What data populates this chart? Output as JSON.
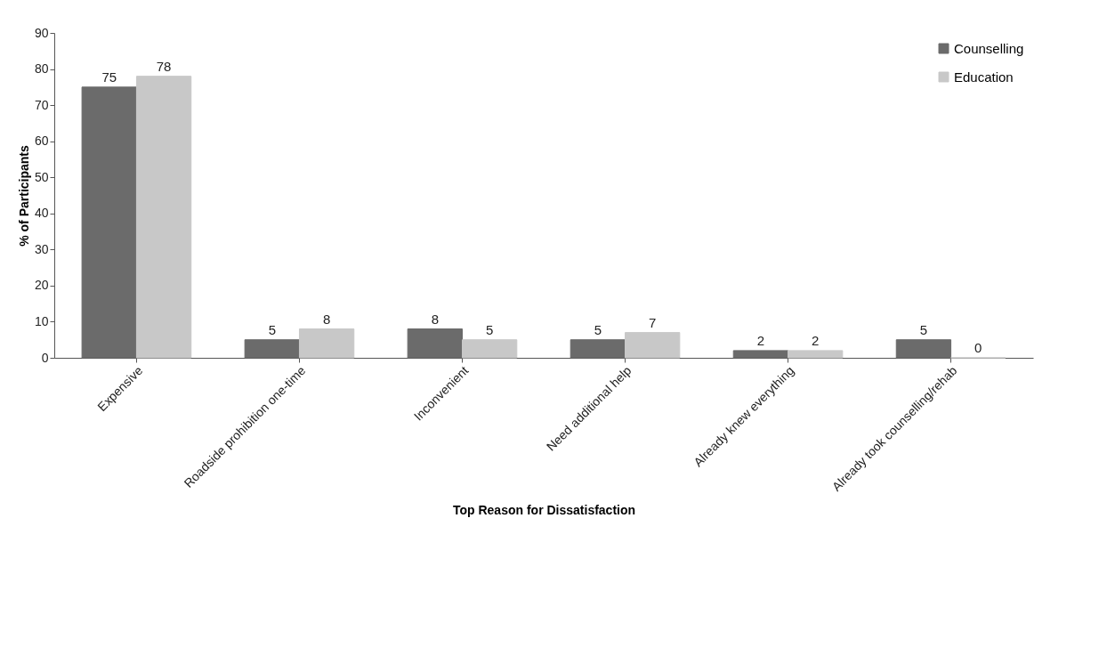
{
  "chart_data": {
    "type": "bar",
    "xlabel": "Top Reason for Dissatisfaction",
    "ylabel": "% of Participants",
    "categories": [
      "Expensive",
      "Roadside prohibition one-time",
      "Inconvenient",
      "Need additional help",
      "Already knew everything",
      "Already took counselling/rehab"
    ],
    "series": [
      {
        "name": "Counselling",
        "color": "#6b6b6b",
        "values": [
          75,
          5,
          8,
          5,
          2,
          5
        ]
      },
      {
        "name": "Education",
        "color": "#c8c8c8",
        "values": [
          78,
          8,
          5,
          7,
          2,
          0
        ]
      }
    ],
    "ylim": [
      0,
      90
    ],
    "yticks": [
      0,
      10,
      20,
      30,
      40,
      50,
      60,
      70,
      80,
      90
    ],
    "grid": false,
    "legend": "top right",
    "data_labels": true
  }
}
